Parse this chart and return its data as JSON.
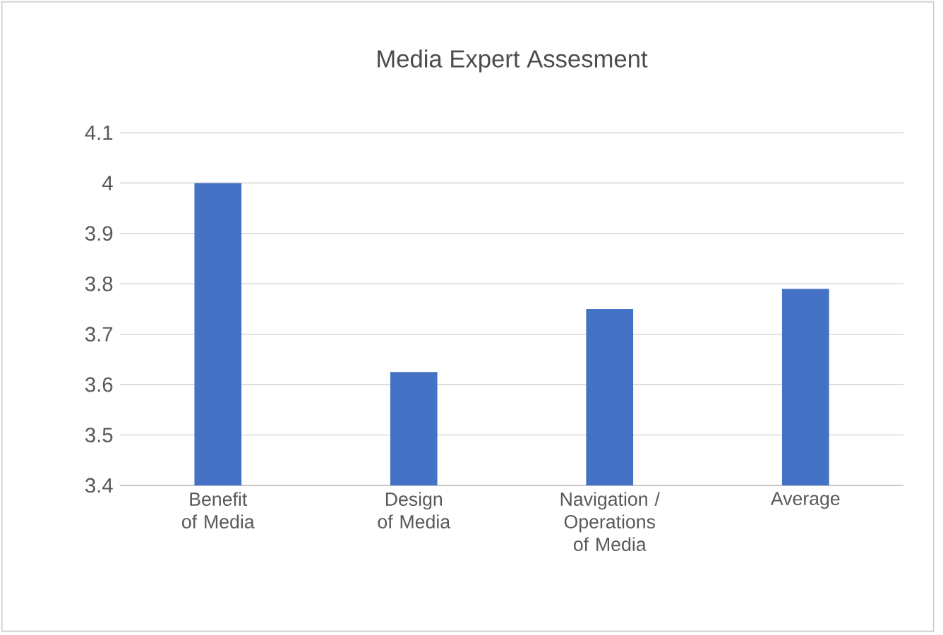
{
  "chart_data": {
    "type": "bar",
    "title": "Media Expert Assesment",
    "categories": [
      "Benefit of Media",
      "Design of Media",
      "Navigation / Operations of Media",
      "Average"
    ],
    "values": [
      4.0,
      3.625,
      3.75,
      3.79
    ],
    "color": "#4472c4",
    "ylim": [
      3.4,
      4.1
    ],
    "yticks": [
      3.4,
      3.5,
      3.6,
      3.7,
      3.8,
      3.9,
      4,
      4.1
    ],
    "grid": "y"
  }
}
